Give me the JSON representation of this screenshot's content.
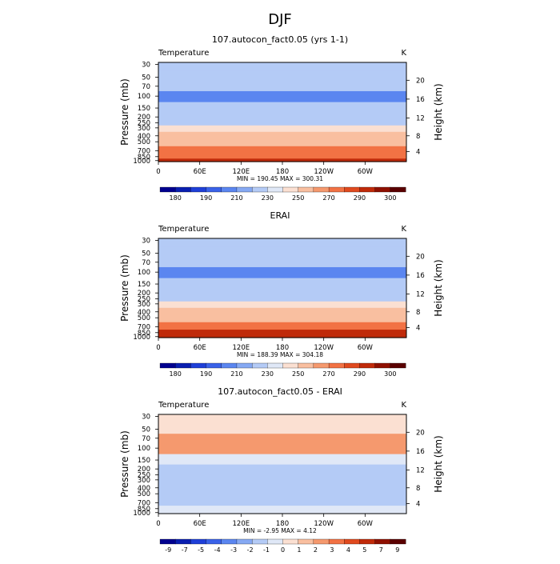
{
  "page_title": "DJF",
  "chart_data": [
    {
      "type": "heatmap",
      "title": "107.autocon_fact0.05 (yrs 1-1)",
      "left_label": "Temperature",
      "units": "K",
      "ylabel": "Pressure (mb)",
      "y2label": "Height (km)",
      "x_ticks": [
        "0",
        "60E",
        "120E",
        "180",
        "120W",
        "60W"
      ],
      "y_ticks": [
        "30",
        "50",
        "70",
        "100",
        "150",
        "200",
        "250",
        "300",
        "400",
        "500",
        "700",
        "850",
        "1000"
      ],
      "height_ticks": [
        "20",
        "16",
        "12",
        "8",
        "4"
      ],
      "stats": "MIN = 190.45   MAX = 300.31",
      "min": 190.45,
      "max": 300.31,
      "colorbar_labels": [
        "180",
        "190",
        "210",
        "230",
        "250",
        "270",
        "290",
        "300"
      ],
      "colorbar_colors": [
        "#00008f",
        "#0a1fb0",
        "#1f3fd8",
        "#3a62e8",
        "#5b86f0",
        "#86a9f3",
        "#b4cbf6",
        "#e0e8f7",
        "#fbe0d2",
        "#f9bfa0",
        "#f5996e",
        "#f27244",
        "#e04a1f",
        "#c02a0a",
        "#8f1000",
        "#5a0000"
      ],
      "profile_rows": [
        {
          "p": "30",
          "v": 226
        },
        {
          "p": "50",
          "v": 219
        },
        {
          "p": "70",
          "v": 213
        },
        {
          "p": "100",
          "v": 205
        },
        {
          "p": "150",
          "v": 213
        },
        {
          "p": "200",
          "v": 220
        },
        {
          "p": "250",
          "v": 228
        },
        {
          "p": "300",
          "v": 238
        },
        {
          "p": "400",
          "v": 252
        },
        {
          "p": "500",
          "v": 264
        },
        {
          "p": "700",
          "v": 280
        },
        {
          "p": "850",
          "v": 290
        },
        {
          "p": "1000",
          "v": 297
        }
      ]
    },
    {
      "type": "heatmap",
      "title": "ERAI",
      "left_label": "Temperature",
      "units": "K",
      "ylabel": "Pressure (mb)",
      "y2label": "Height (km)",
      "x_ticks": [
        "0",
        "60E",
        "120E",
        "180",
        "120W",
        "60W"
      ],
      "y_ticks": [
        "30",
        "50",
        "70",
        "100",
        "150",
        "200",
        "250",
        "300",
        "400",
        "500",
        "700",
        "850",
        "1000"
      ],
      "height_ticks": [
        "20",
        "16",
        "12",
        "8",
        "4"
      ],
      "stats": "MIN = 188.39   MAX = 304.18",
      "min": 188.39,
      "max": 304.18,
      "colorbar_labels": [
        "180",
        "190",
        "210",
        "230",
        "250",
        "270",
        "290",
        "300"
      ],
      "colorbar_colors": [
        "#00008f",
        "#0a1fb0",
        "#1f3fd8",
        "#3a62e8",
        "#5b86f0",
        "#86a9f3",
        "#b4cbf6",
        "#e0e8f7",
        "#fbe0d2",
        "#f9bfa0",
        "#f5996e",
        "#f27244",
        "#e04a1f",
        "#c02a0a",
        "#8f1000",
        "#5a0000"
      ],
      "profile_rows": [
        {
          "p": "30",
          "v": 224
        },
        {
          "p": "50",
          "v": 217
        },
        {
          "p": "70",
          "v": 211
        },
        {
          "p": "100",
          "v": 200
        },
        {
          "p": "150",
          "v": 212
        },
        {
          "p": "200",
          "v": 220
        },
        {
          "p": "250",
          "v": 229
        },
        {
          "p": "300",
          "v": 239
        },
        {
          "p": "400",
          "v": 253
        },
        {
          "p": "500",
          "v": 265
        },
        {
          "p": "700",
          "v": 281
        },
        {
          "p": "850",
          "v": 291
        },
        {
          "p": "1000",
          "v": 299
        }
      ]
    },
    {
      "type": "heatmap",
      "title": "107.autocon_fact0.05 - ERAI",
      "left_label": "Temperature",
      "units": "K",
      "ylabel": "Pressure (mb)",
      "y2label": "Height (km)",
      "x_ticks": [
        "0",
        "60E",
        "120E",
        "180",
        "120W",
        "60W"
      ],
      "y_ticks": [
        "30",
        "50",
        "70",
        "100",
        "150",
        "200",
        "250",
        "300",
        "400",
        "500",
        "700",
        "850",
        "1000"
      ],
      "height_ticks": [
        "20",
        "16",
        "12",
        "8",
        "4"
      ],
      "stats": "MIN = -2.95   MAX = 4.12",
      "min": -2.95,
      "max": 4.12,
      "colorbar_labels": [
        "-9",
        "-7",
        "-5",
        "-4",
        "-3",
        "-2",
        "-1",
        "0",
        "1",
        "2",
        "3",
        "4",
        "5",
        "7",
        "9"
      ],
      "colorbar_colors": [
        "#00008f",
        "#0a1fb0",
        "#1f3fd8",
        "#3a62e8",
        "#5b86f0",
        "#86a9f3",
        "#b4cbf6",
        "#e0e8f7",
        "#fbe0d2",
        "#f9bfa0",
        "#f5996e",
        "#f27244",
        "#e04a1f",
        "#c02a0a",
        "#8f1000",
        "#5a0000"
      ],
      "profile_rows": [
        {
          "p": "30",
          "v": 0.3
        },
        {
          "p": "50",
          "v": 0.8
        },
        {
          "p": "70",
          "v": 2.5
        },
        {
          "p": "100",
          "v": 2.2
        },
        {
          "p": "150",
          "v": -0.5
        },
        {
          "p": "200",
          "v": -1.5
        },
        {
          "p": "250",
          "v": -1.5
        },
        {
          "p": "300",
          "v": -1.5
        },
        {
          "p": "400",
          "v": -1.5
        },
        {
          "p": "500",
          "v": -1.5
        },
        {
          "p": "700",
          "v": -1.2
        },
        {
          "p": "850",
          "v": -0.5
        },
        {
          "p": "1000",
          "v": -0.5
        }
      ]
    }
  ]
}
